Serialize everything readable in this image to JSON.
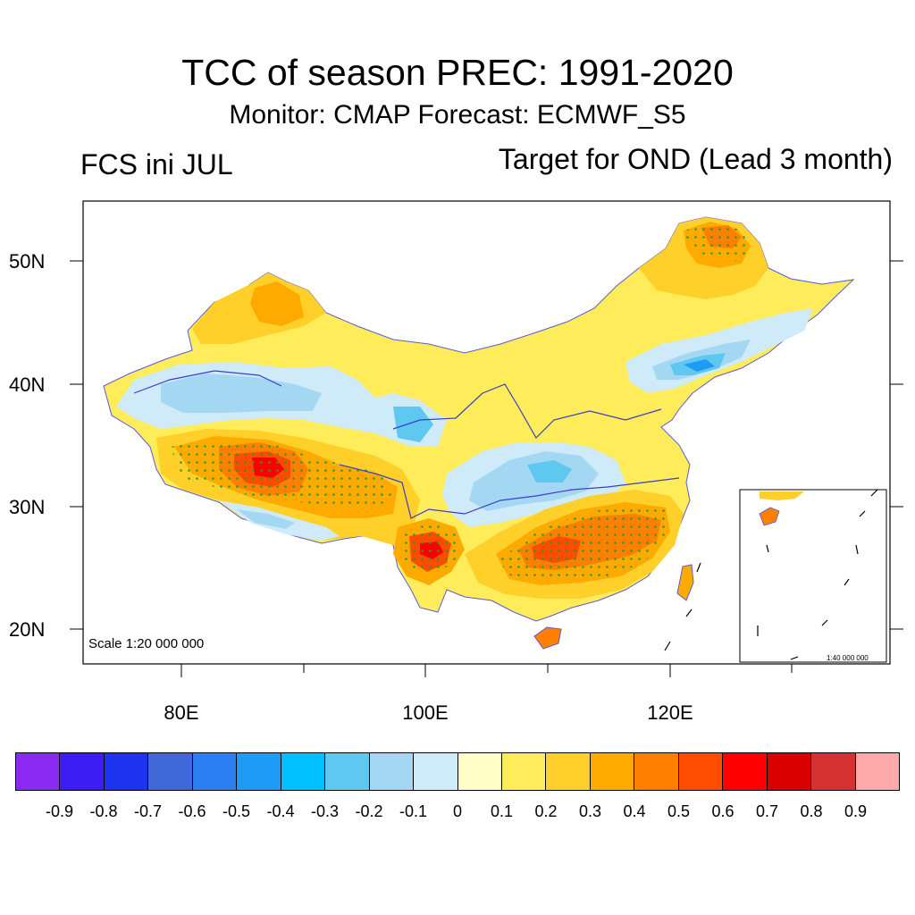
{
  "figure": {
    "title": "TCC of season PREC: 1991-2020",
    "subtitle": "Monitor: CMAP   Forecast: ECMWF_S5",
    "left_label": "FCS ini JUL",
    "right_label": "Target for OND (Lead 3 month)",
    "scale_label": "Scale 1:20 000 000",
    "inset_scale_label": "1:40 000 000"
  },
  "axes": {
    "lat_labels": [
      "50N",
      "40N",
      "30N",
      "20N"
    ],
    "lon_labels": [
      "80E",
      "100E",
      "120E"
    ]
  },
  "colorbar": {
    "labels": [
      "-0.9",
      "-0.8",
      "-0.7",
      "-0.6",
      "-0.5",
      "-0.4",
      "-0.3",
      "-0.2",
      "-0.1",
      "0",
      "0.1",
      "0.2",
      "0.3",
      "0.4",
      "0.5",
      "0.6",
      "0.7",
      "0.8",
      "0.9"
    ],
    "colors": [
      "#8b2af2",
      "#3c1ef5",
      "#1c34f0",
      "#4068d8",
      "#2c7ff0",
      "#1e9cf5",
      "#00c0ff",
      "#5ec8f0",
      "#a4d8f2",
      "#cfeaf8",
      "#ffffc8",
      "#ffec5a",
      "#ffcf2a",
      "#ffaa00",
      "#ff8000",
      "#ff4c00",
      "#ff0000",
      "#d80000",
      "#d63030",
      "#ffaaaa"
    ]
  }
}
